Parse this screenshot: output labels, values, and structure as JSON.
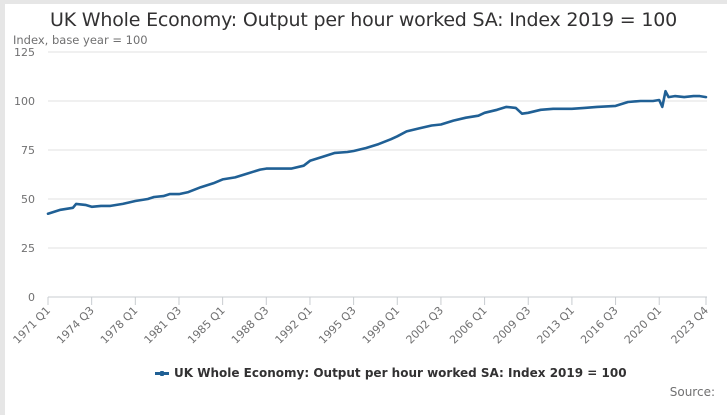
{
  "chart_data": {
    "type": "line",
    "title": "UK Whole Economy: Output per hour worked SA: Index 2019 = 100",
    "ylabel": "Index, base year = 100",
    "xlabel": "",
    "ylim": [
      0,
      125
    ],
    "yticks": [
      0,
      25,
      50,
      75,
      100,
      125
    ],
    "xtick_labels": [
      "1971 Q1",
      "1974 Q3",
      "1978 Q1",
      "1981 Q3",
      "1985 Q1",
      "1988 Q3",
      "1992 Q1",
      "1995 Q3",
      "1999 Q1",
      "2002 Q3",
      "2006 Q1",
      "2009 Q3",
      "2013 Q1",
      "2016 Q3",
      "2020 Q1",
      "2023 Q4"
    ],
    "grid": true,
    "legend_position": "bottom",
    "series": [
      {
        "name": "UK Whole Economy: Output per hour worked SA: Index 2019 = 100",
        "color": "#206095",
        "x": [
          "1971 Q1",
          "1972 Q1",
          "1973 Q1",
          "1973 Q2",
          "1974 Q1",
          "1974 Q3",
          "1975 Q2",
          "1976 Q1",
          "1977 Q1",
          "1978 Q1",
          "1979 Q1",
          "1979 Q3",
          "1980 Q2",
          "1980 Q4",
          "1981 Q3",
          "1982 Q2",
          "1983 Q2",
          "1984 Q2",
          "1985 Q1",
          "1986 Q1",
          "1987 Q1",
          "1988 Q1",
          "1988 Q3",
          "1989 Q3",
          "1990 Q3",
          "1991 Q3",
          "1992 Q1",
          "1993 Q1",
          "1994 Q1",
          "1995 Q1",
          "1995 Q3",
          "1996 Q3",
          "1997 Q3",
          "1998 Q3",
          "1999 Q1",
          "1999 Q4",
          "2000 Q4",
          "2001 Q4",
          "2002 Q3",
          "2003 Q3",
          "2004 Q3",
          "2005 Q3",
          "2006 Q1",
          "2007 Q1",
          "2007 Q4",
          "2008 Q3",
          "2009 Q1",
          "2009 Q3",
          "2010 Q3",
          "2011 Q3",
          "2012 Q3",
          "2013 Q1",
          "2014 Q1",
          "2015 Q1",
          "2016 Q3",
          "2017 Q3",
          "2018 Q3",
          "2019 Q3",
          "2020 Q1",
          "2020 Q2",
          "2020 Q3",
          "2020 Q4",
          "2021 Q2",
          "2022 Q1",
          "2022 Q4",
          "2023 Q2",
          "2023 Q4"
        ],
        "values": [
          42.5,
          44.5,
          45.5,
          47.5,
          47,
          46,
          46.5,
          46.5,
          47.5,
          49,
          50,
          51,
          51.5,
          52.5,
          52.5,
          53.5,
          56,
          58,
          60,
          61,
          63,
          65,
          65.5,
          65.5,
          65.5,
          67,
          69.5,
          71.5,
          73.5,
          74,
          74.5,
          76,
          78,
          80.5,
          82,
          84.5,
          86,
          87.5,
          88,
          90,
          91.5,
          92.5,
          94,
          95.5,
          97,
          96.5,
          93.5,
          94,
          95.5,
          96,
          96,
          96,
          96.5,
          97,
          97.5,
          99.5,
          100,
          100,
          100.5,
          97,
          105,
          102,
          102.5,
          102,
          102.5,
          102.5,
          102
        ]
      }
    ]
  },
  "legend": {
    "label": "UK Whole Economy: Output per hour worked SA: Index 2019 = 100"
  },
  "footer": {
    "source_label": "Source:"
  }
}
